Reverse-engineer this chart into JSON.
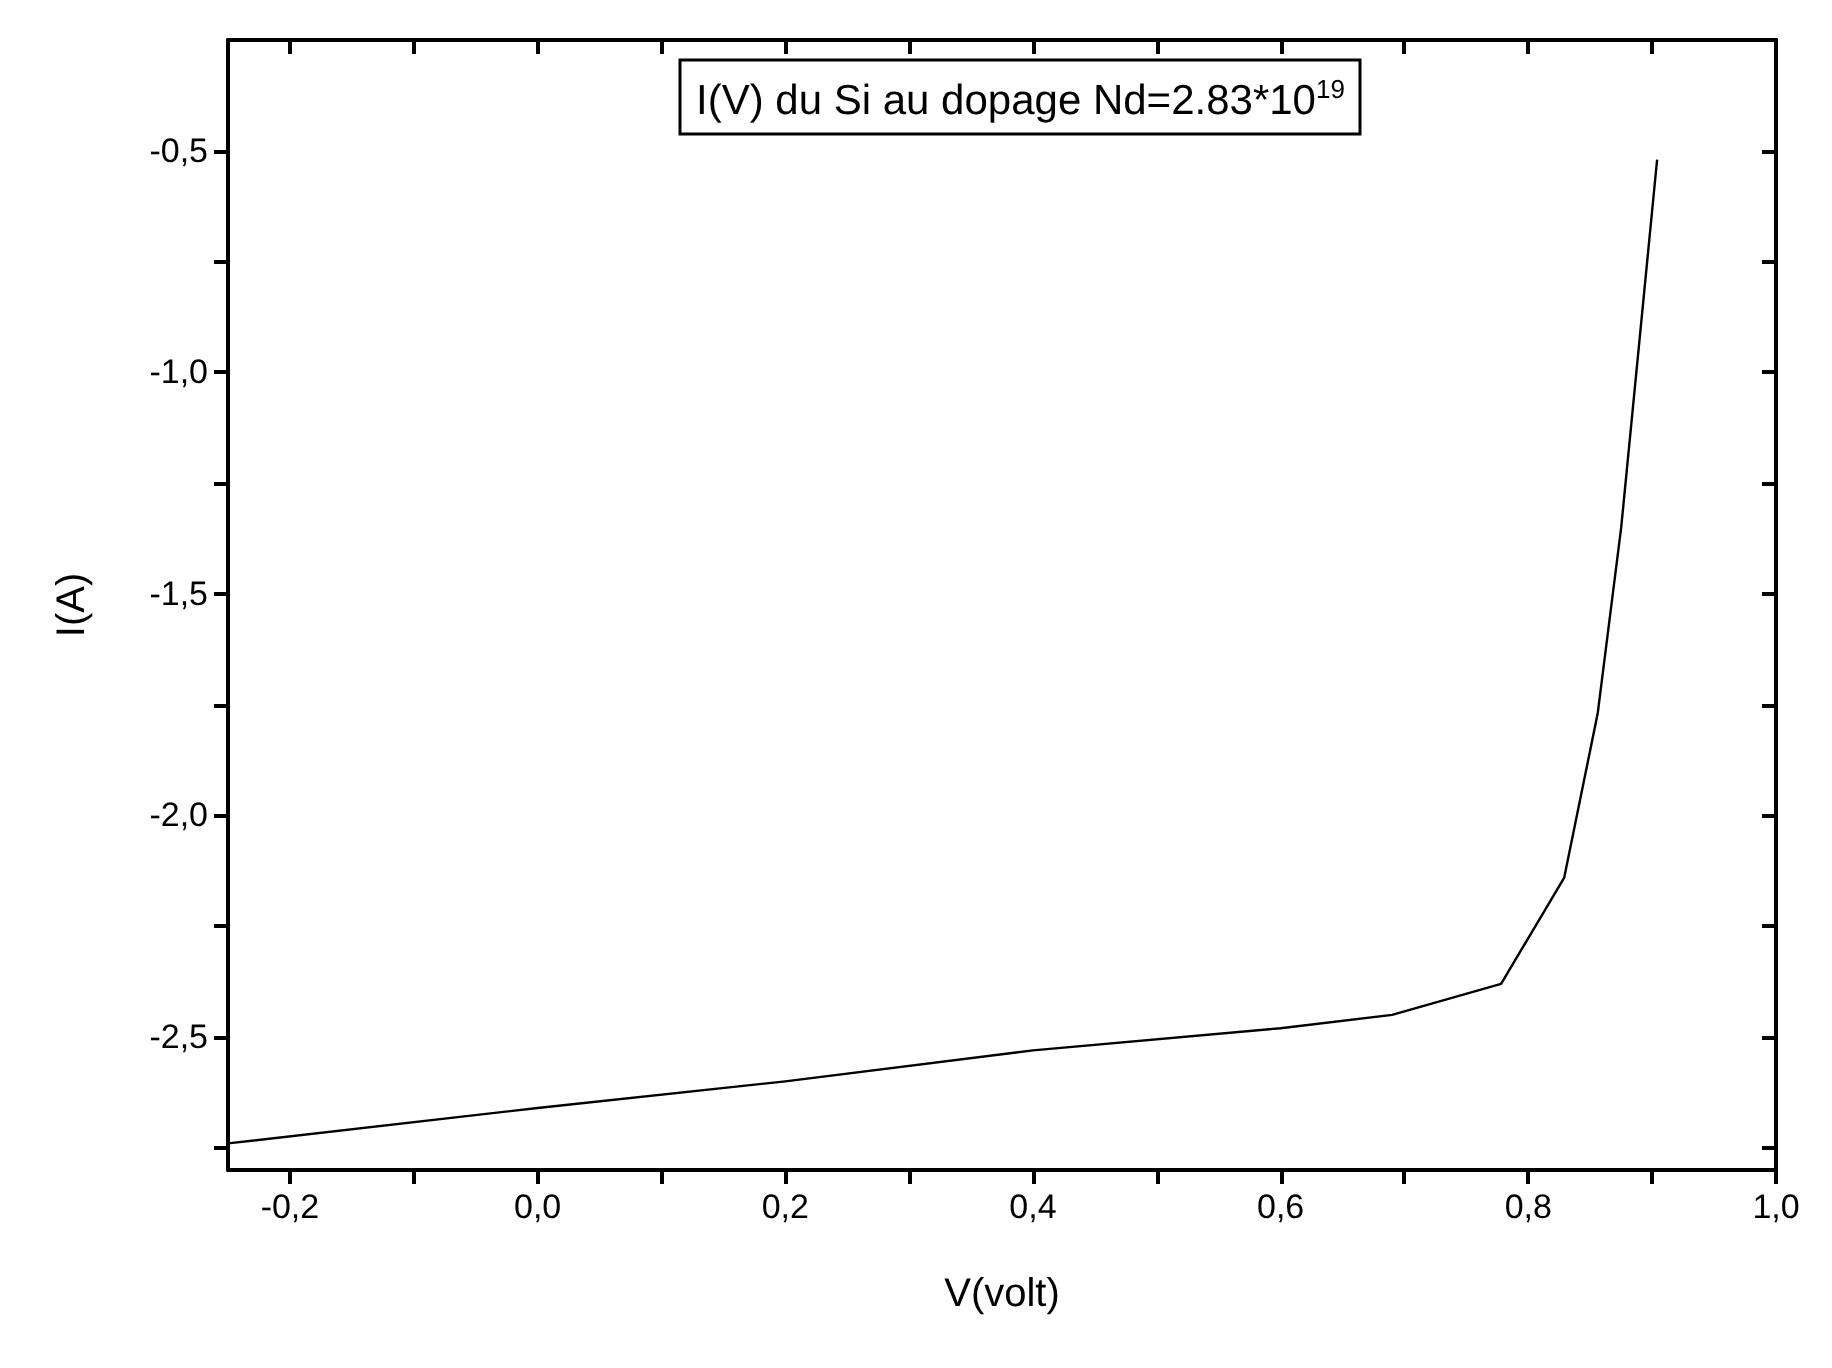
{
  "chart_data": {
    "type": "line",
    "xlabel": "V(volt)",
    "ylabel": "I(A)",
    "annotations": [
      "I(V) du Si au dopage Nd=2.83*10$^{19}$"
    ],
    "x": [
      -0.25,
      0,
      0.2,
      0.4,
      0.6,
      0.69,
      0.778,
      0.829,
      0.856,
      0.875,
      0.904
    ],
    "series": [
      {
        "color": "#000000",
        "values": [
          -2.74,
          -2.66,
          -2.6,
          -2.53,
          -2.48,
          -2.45,
          -2.38,
          -2.14,
          -1.77,
          -1.35,
          -0.52
        ]
      }
    ],
    "xlim": [
      -0.25,
      1.0
    ],
    "xticks": [
      {
        "value": -0.2,
        "label": "-0,2"
      },
      {
        "value": -0.1,
        "label": null
      },
      {
        "value": 0,
        "label": "0,0"
      },
      {
        "value": 0.1,
        "label": null
      },
      {
        "value": 0.2,
        "label": "0,2"
      },
      {
        "value": 0.3,
        "label": null
      },
      {
        "value": 0.4,
        "label": "0,4"
      },
      {
        "value": 0.5,
        "label": null
      },
      {
        "value": 0.6,
        "label": "0,6"
      },
      {
        "value": 0.7,
        "label": null
      },
      {
        "value": 0.8,
        "label": "0,8"
      },
      {
        "value": 0.9,
        "label": null
      },
      {
        "value": 1.0,
        "label": "1,0"
      }
    ],
    "ylim": [
      -2.8,
      -0.25
    ],
    "yticks": [
      {
        "value": -2.75,
        "label": null
      },
      {
        "value": -2.5,
        "label": "-2,5"
      },
      {
        "value": -2.25,
        "label": null
      },
      {
        "value": -2.0,
        "label": "-2,0"
      },
      {
        "value": -1.75,
        "label": null
      },
      {
        "value": -1.5,
        "label": "-1,5"
      },
      {
        "value": -1.25,
        "label": null
      },
      {
        "value": -1.0,
        "label": "-1,0"
      },
      {
        "value": -0.75,
        "label": null
      },
      {
        "value": -0.5,
        "label": "-0,5"
      }
    ],
    "marker": "none",
    "line_style": "solid"
  }
}
